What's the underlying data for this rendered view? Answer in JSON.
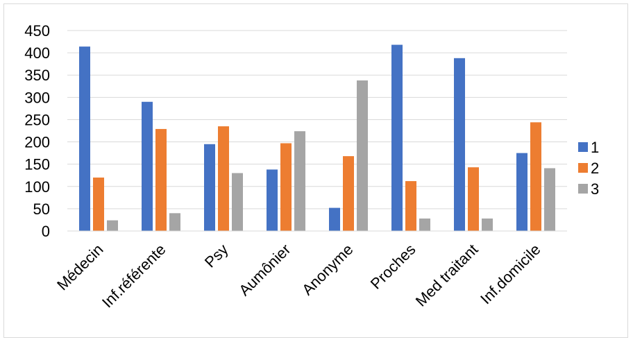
{
  "chart_data": {
    "type": "bar",
    "categories": [
      "Médecin",
      "Inf.référente",
      "Psy",
      "Aumônier",
      "Anonyme",
      "Proches",
      "Med traitant",
      "Inf.domicile"
    ],
    "series": [
      {
        "name": "1",
        "color": "#4472C4",
        "values": [
          414,
          290,
          195,
          138,
          52,
          418,
          388,
          175
        ]
      },
      {
        "name": "2",
        "color": "#ED7D31",
        "values": [
          120,
          229,
          235,
          197,
          168,
          112,
          143,
          244
        ]
      },
      {
        "name": "3",
        "color": "#A5A5A5",
        "values": [
          24,
          40,
          130,
          224,
          338,
          28,
          28,
          141
        ]
      }
    ],
    "yticks": [
      0,
      50,
      100,
      150,
      200,
      250,
      300,
      350,
      400,
      450
    ],
    "ylim": [
      0,
      450
    ],
    "grid": true,
    "legend_position": "right",
    "title": "",
    "xlabel": "",
    "ylabel": ""
  }
}
